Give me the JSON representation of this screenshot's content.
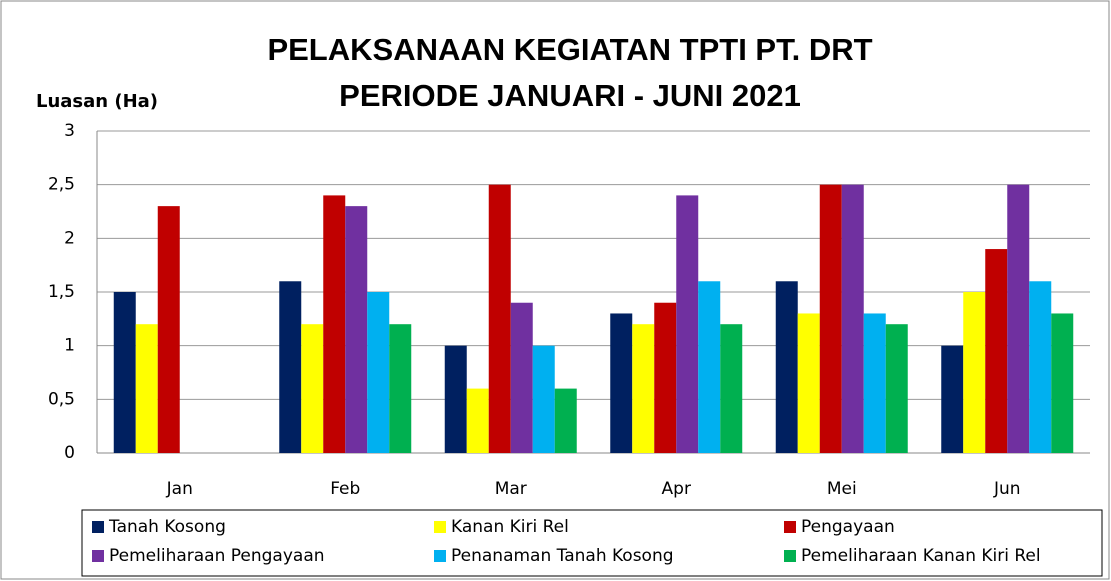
{
  "chart_data": {
    "type": "bar",
    "title": [
      "PELAKSANAAN KEGIATAN TPTI PT. DRT",
      "PERIODE JANUARI - JUNI 2021"
    ],
    "y_label": "Luasan (Ha)",
    "categories": [
      "Jan",
      "Feb",
      "Mar",
      "Apr",
      "Mei",
      "Jun"
    ],
    "series": [
      {
        "name": "Tanah Kosong",
        "color": "#002060",
        "values": [
          1.5,
          1.6,
          1.0,
          1.3,
          1.6,
          1.0
        ]
      },
      {
        "name": "Kanan Kiri Rel",
        "color": "#ffff00",
        "values": [
          1.2,
          1.2,
          0.6,
          1.2,
          1.3,
          1.5
        ]
      },
      {
        "name": "Pengayaan",
        "color": "#c00000",
        "values": [
          2.3,
          2.4,
          2.5,
          1.4,
          2.5,
          1.9
        ]
      },
      {
        "name": "Pemeliharaan Pengayaan",
        "color": "#7030a0",
        "values": [
          null,
          2.3,
          1.4,
          2.4,
          2.5,
          2.5
        ]
      },
      {
        "name": "Penanaman Tanah Kosong",
        "color": "#00b0f0",
        "values": [
          null,
          1.5,
          1.0,
          1.6,
          1.3,
          1.6
        ]
      },
      {
        "name": "Pemeliharaan Kanan Kiri Rel",
        "color": "#00b050",
        "values": [
          null,
          1.2,
          0.6,
          1.2,
          1.2,
          1.3
        ]
      }
    ],
    "ylim": [
      0,
      3
    ],
    "yticks": [
      0,
      {
        "value": 0.5,
        "label": "0,5"
      },
      1,
      {
        "value": 1.5,
        "label": "1,5"
      },
      2,
      {
        "value": 2.5,
        "label": "2,5"
      },
      3
    ],
    "grid": true,
    "legend": "bottom"
  }
}
